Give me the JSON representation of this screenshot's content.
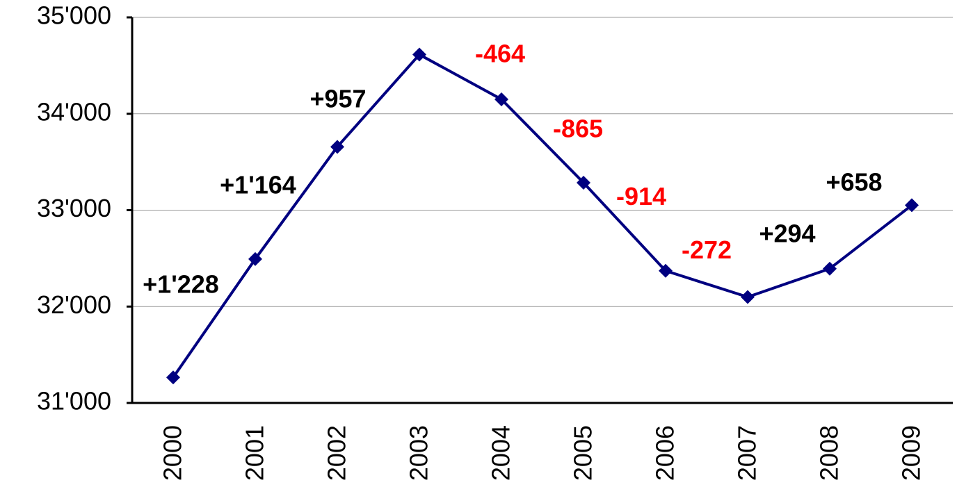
{
  "chart_data": {
    "type": "line",
    "categories": [
      "2000",
      "2001",
      "2002",
      "2003",
      "2004",
      "2005",
      "2006",
      "2007",
      "2008",
      "2009"
    ],
    "series": [
      {
        "color": "#000080",
        "values": [
          31265,
          32493,
          33657,
          34614,
          34150,
          33285,
          32371,
          32099,
          32393,
          33051
        ]
      }
    ],
    "ylim": [
      31000,
      35000
    ],
    "yticks": [
      {
        "value": 31000,
        "label": "31'000"
      },
      {
        "value": 32000,
        "label": "32'000"
      },
      {
        "value": 33000,
        "label": "33'000"
      },
      {
        "value": 34000,
        "label": "34'000"
      },
      {
        "value": 35000,
        "label": "35'000"
      }
    ],
    "grid": true,
    "annotations": [
      {
        "text": "+1'228",
        "color": "#000000"
      },
      {
        "text": "+1'164",
        "color": "#000000"
      },
      {
        "text": "+957",
        "color": "#000000"
      },
      {
        "text": "-464",
        "color": "#ff0000"
      },
      {
        "text": "-865",
        "color": "#ff0000"
      },
      {
        "text": "-914",
        "color": "#ff0000"
      },
      {
        "text": "-272",
        "color": "#ff0000"
      },
      {
        "text": "+294",
        "color": "#000000"
      },
      {
        "text": "+658",
        "color": "#000000"
      }
    ]
  }
}
